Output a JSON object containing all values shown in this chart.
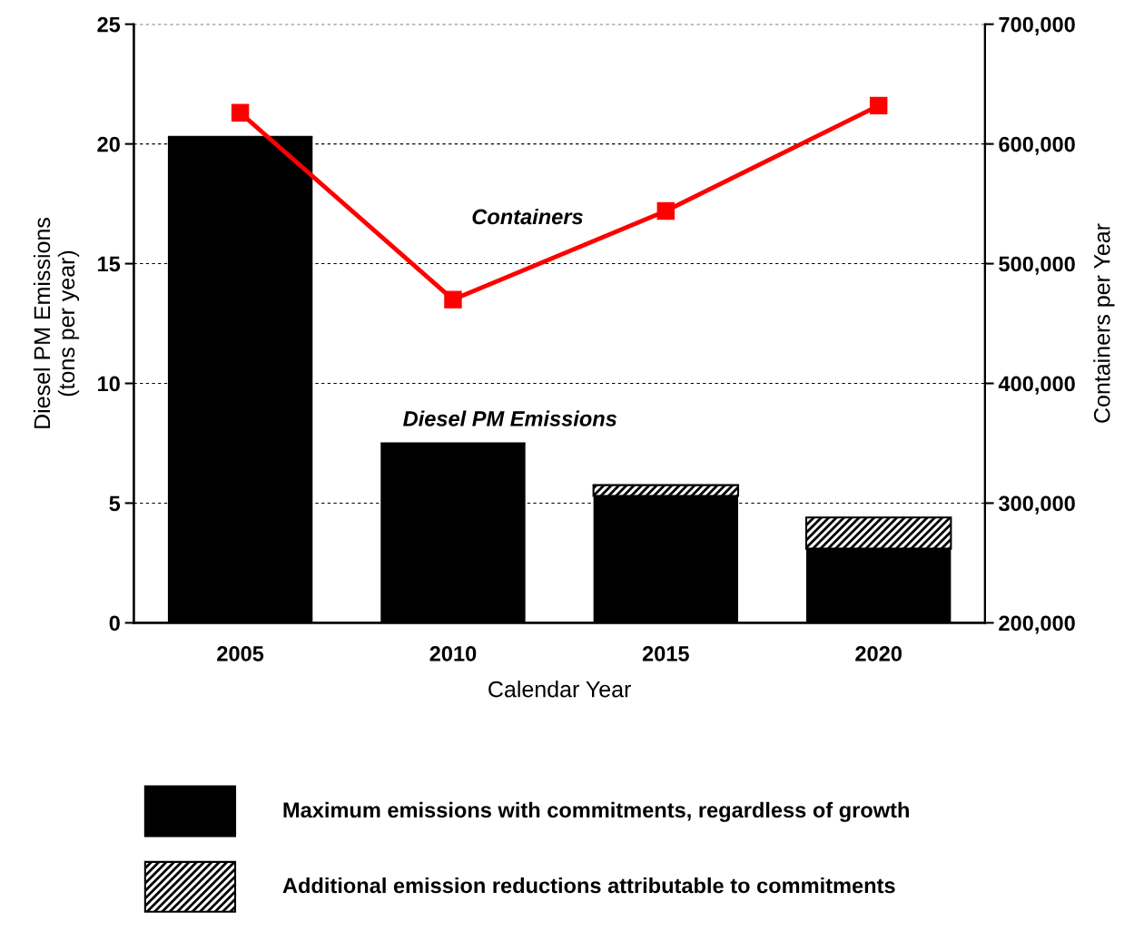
{
  "chart_data": {
    "type": "bar",
    "stacked": true,
    "categories": [
      "2005",
      "2010",
      "2015",
      "2020"
    ],
    "xlabel": "Calendar Year",
    "ylabel": "Diesel PM Emissions\n(tons per year)",
    "y2label": "Containers per Year",
    "series": [
      {
        "name": "Maximum emissions with commitments, regardless of growth",
        "color": "#000000",
        "values": [
          20.3,
          7.5,
          5.3,
          3.1
        ]
      },
      {
        "name": "Additional emission reductions attributable to commitments",
        "color": "#000000",
        "values": [
          null,
          null,
          0.45,
          1.3
        ]
      },
      {
        "name": "Containers",
        "type": "line",
        "axis": "y2",
        "color": "#ff0000",
        "marker": "square",
        "values": [
          626000,
          470000,
          544000,
          632000
        ]
      }
    ],
    "ylim": [
      0,
      25
    ],
    "yticks": [
      0,
      5,
      10,
      15,
      20,
      25
    ],
    "y2lim": [
      200000,
      700000
    ],
    "y2ticks": [
      {
        "value": 200000,
        "label": "200,000"
      },
      {
        "value": 300000,
        "label": "300,000"
      },
      {
        "value": 400000,
        "label": "400,000"
      },
      {
        "value": 500000,
        "label": "500,000"
      },
      {
        "value": 600000,
        "label": "600,000"
      },
      {
        "value": 700000,
        "label": "700,000"
      }
    ],
    "annotations": [
      "Diesel PM Emissions"
    ],
    "grid": "y",
    "legend": "bottom"
  }
}
